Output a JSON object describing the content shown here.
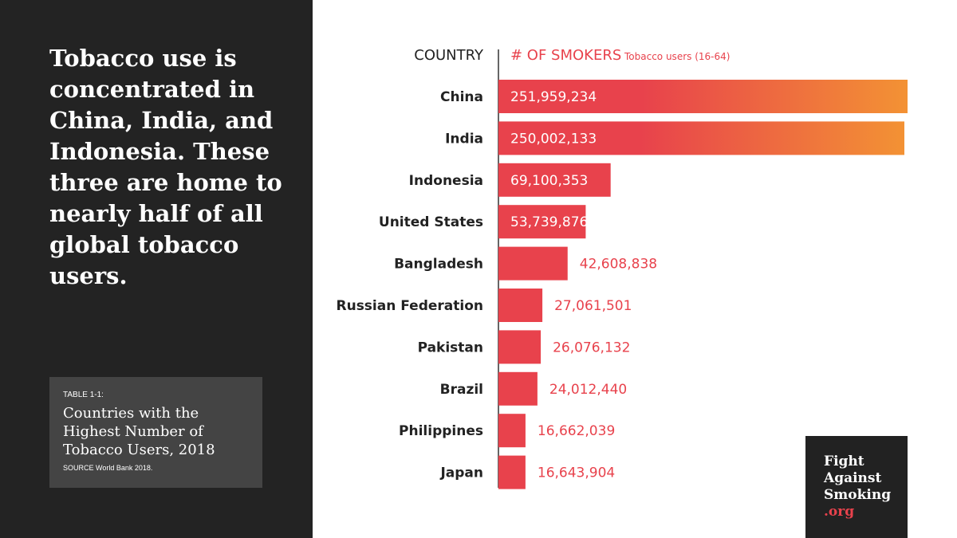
{
  "headline": "Tobacco use is concentrated in China, India, and Indonesia. These three are home to nearly half of all global tobacco users.",
  "table": {
    "label": "TABLE 1-1:",
    "title": "Countries with the Highest Number of Tobacco Users, 2018",
    "source": "SOURCE World Bank 2018."
  },
  "logo": {
    "line1": "Fight",
    "line2": "Against",
    "line3": "Smoking",
    "line4": ".org"
  },
  "colors": {
    "bar": "#e8424c",
    "bar_gradient_end": "#f39234",
    "header_accent": "#e8424c",
    "panel": "#232323"
  },
  "chart_data": {
    "type": "bar",
    "orientation": "horizontal",
    "category_header": "COUNTRY",
    "value_header": "# OF SMOKERS",
    "value_subheader": "Tobacco users (16-64)",
    "categories": [
      "China",
      "India",
      "Indonesia",
      "United States",
      "Bangladesh",
      "Russian Federation",
      "Pakistan",
      "Brazil",
      "Philippines",
      "Japan"
    ],
    "values": [
      251959234,
      250002133,
      69100353,
      53739876,
      42608838,
      27061501,
      26076132,
      24012440,
      16662039,
      16643904
    ],
    "value_labels": [
      "251,959,234",
      "250,002,133",
      "69,100,353",
      "53,739,876",
      "42,608,838",
      "27,061,501",
      "26,076,132",
      "24,012,440",
      "16,662,039",
      "16,643,904"
    ],
    "xlim": [
      0,
      251959234
    ],
    "grid": false
  }
}
